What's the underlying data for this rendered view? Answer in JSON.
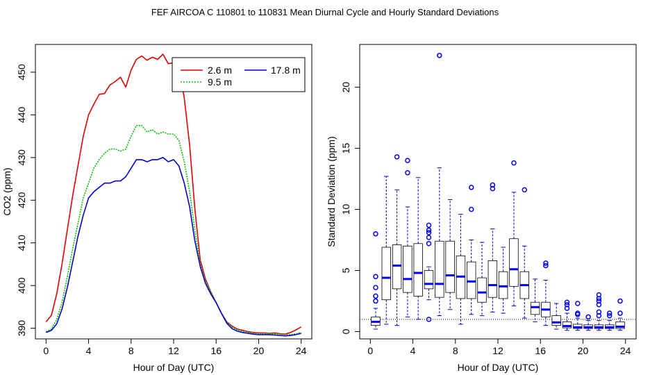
{
  "figure": {
    "title": "FEF   AIRCOA C   110801 to 110831   Mean Diurnal Cycle and Hourly Standard Deviations"
  },
  "colors": {
    "series_2_6": "#e00000",
    "series_9_5": "#00c000",
    "series_17_8": "#0000cc",
    "box_median": "#0000ff",
    "box_whisker": "#0000cc",
    "box_outlier": "#0000ff",
    "box_frame": "#000000"
  },
  "chart_data": [
    {
      "type": "line",
      "title": "",
      "xlabel": "Hour of Day (UTC)",
      "ylabel": "CO2 (ppm)",
      "xlim": [
        -1,
        25
      ],
      "ylim": [
        387.5,
        456.5
      ],
      "xticks": [
        0,
        4,
        8,
        12,
        16,
        20,
        24
      ],
      "yticks": [
        390,
        400,
        410,
        420,
        430,
        440,
        450
      ],
      "legend": {
        "position": "top-right",
        "entries": [
          "2.6 m",
          "9.5 m",
          "17.8 m"
        ]
      },
      "x": [
        0,
        0.5,
        1,
        1.5,
        2,
        2.5,
        3,
        3.5,
        4,
        4.5,
        5,
        5.5,
        6,
        6.5,
        7,
        7.5,
        8,
        8.5,
        9,
        9.5,
        10,
        10.5,
        11,
        11.5,
        12,
        12.5,
        13,
        13.5,
        14,
        14.5,
        15,
        15.5,
        16,
        16.5,
        17,
        17.5,
        18,
        18.5,
        19,
        19.5,
        20,
        20.5,
        21,
        21.5,
        22,
        22.5,
        23,
        23.5,
        24
      ],
      "series": [
        {
          "name": "2.6 m",
          "color_key": "series_2_6",
          "values": [
            391.5,
            393.0,
            398.0,
            405.0,
            413.0,
            421.0,
            428.0,
            435.0,
            440.0,
            442.5,
            444.8,
            445.0,
            447.0,
            447.8,
            448.8,
            446.5,
            450.5,
            453.0,
            453.8,
            452.8,
            453.5,
            453.0,
            454.2,
            452.0,
            452.2,
            451.0,
            444.0,
            433.0,
            418.0,
            406.0,
            401.5,
            398.5,
            396.0,
            393.5,
            391.5,
            390.5,
            389.8,
            389.5,
            389.2,
            389.0,
            388.9,
            388.9,
            388.8,
            388.9,
            388.7,
            388.6,
            389.0,
            389.6,
            390.3
          ]
        },
        {
          "name": "9.5 m",
          "color_key": "series_9_5",
          "values": [
            389.2,
            389.8,
            392.0,
            396.0,
            402.0,
            408.5,
            414.5,
            420.5,
            424.0,
            427.5,
            429.5,
            431.0,
            432.0,
            432.0,
            431.5,
            432.0,
            435.0,
            437.5,
            437.5,
            436.0,
            436.5,
            435.5,
            436.0,
            435.5,
            435.5,
            434.0,
            429.0,
            422.0,
            413.0,
            405.0,
            401.0,
            398.5,
            396.0,
            393.5,
            391.5,
            390.2,
            389.6,
            389.3,
            389.0,
            388.8,
            388.7,
            388.7,
            388.7,
            388.6,
            388.6,
            388.5,
            388.5,
            388.7,
            389.0
          ]
        },
        {
          "name": "17.8 m",
          "color_key": "series_17_8",
          "values": [
            389.0,
            389.5,
            391.0,
            394.5,
            399.5,
            405.5,
            411.5,
            416.5,
            420.5,
            422.0,
            423.0,
            424.0,
            424.0,
            424.5,
            424.5,
            425.5,
            427.5,
            429.5,
            429.5,
            429.0,
            429.5,
            429.5,
            430.0,
            429.0,
            429.5,
            428.0,
            424.0,
            418.5,
            410.5,
            404.5,
            400.5,
            398.0,
            396.0,
            393.5,
            391.2,
            389.9,
            389.3,
            389.0,
            388.8,
            388.6,
            388.5,
            388.5,
            388.5,
            388.4,
            388.3,
            388.2,
            388.3,
            388.5,
            388.8
          ]
        }
      ]
    },
    {
      "type": "box",
      "title": "",
      "xlabel": "Hour of Day (UTC)",
      "ylabel": "Standard Deviation (ppm)",
      "xlim": [
        -1,
        25
      ],
      "ylim": [
        -0.6,
        23.5
      ],
      "xticks": [
        0,
        4,
        8,
        12,
        16,
        20,
        24
      ],
      "yticks": [
        0,
        5,
        10,
        15,
        20
      ],
      "reference_line": 1.0,
      "boxes": [
        {
          "x": 0.5,
          "q1": 0.5,
          "median": 0.8,
          "q3": 1.2,
          "wlo": 0.2,
          "whi": 1.9,
          "outliers": [
            2.5,
            2.9,
            3.6,
            4.5,
            8.0
          ]
        },
        {
          "x": 1.5,
          "q1": 2.6,
          "median": 4.4,
          "q3": 6.9,
          "wlo": 0.6,
          "whi": 12.7,
          "outliers": []
        },
        {
          "x": 2.5,
          "q1": 3.5,
          "median": 5.4,
          "q3": 7.1,
          "wlo": 0.5,
          "whi": 11.6,
          "outliers": [
            14.3
          ]
        },
        {
          "x": 3.5,
          "q1": 3.2,
          "median": 4.3,
          "q3": 7.0,
          "wlo": 1.2,
          "whi": 10.2,
          "outliers": [
            13.0,
            14.0
          ]
        },
        {
          "x": 4.5,
          "q1": 2.9,
          "median": 4.8,
          "q3": 7.2,
          "wlo": 1.0,
          "whi": 12.6,
          "outliers": []
        },
        {
          "x": 5.5,
          "q1": 3.5,
          "median": 3.9,
          "q3": 5.0,
          "wlo": 2.6,
          "whi": 5.3,
          "outliers": [
            1.0,
            7.2,
            7.7,
            8.1,
            8.3,
            8.7
          ]
        },
        {
          "x": 6.5,
          "q1": 2.8,
          "median": 3.9,
          "q3": 7.4,
          "wlo": 1.3,
          "whi": 13.4,
          "outliers": [
            22.6
          ]
        },
        {
          "x": 7.5,
          "q1": 3.2,
          "median": 4.6,
          "q3": 7.4,
          "wlo": 1.8,
          "whi": 10.8,
          "outliers": []
        },
        {
          "x": 8.5,
          "q1": 2.7,
          "median": 4.5,
          "q3": 6.2,
          "wlo": 0.6,
          "whi": 9.6,
          "outliers": []
        },
        {
          "x": 9.5,
          "q1": 2.7,
          "median": 4.1,
          "q3": 5.7,
          "wlo": 1.4,
          "whi": 7.5,
          "outliers": [
            10.0,
            11.8
          ]
        },
        {
          "x": 10.5,
          "q1": 2.4,
          "median": 3.2,
          "q3": 4.4,
          "wlo": 1.3,
          "whi": 7.3,
          "outliers": []
        },
        {
          "x": 11.5,
          "q1": 2.8,
          "median": 3.8,
          "q3": 5.8,
          "wlo": 1.6,
          "whi": 8.4,
          "outliers": [
            11.7,
            12.0
          ]
        },
        {
          "x": 12.5,
          "q1": 2.7,
          "median": 3.7,
          "q3": 4.9,
          "wlo": 1.5,
          "whi": 6.9,
          "outliers": []
        },
        {
          "x": 13.5,
          "q1": 3.7,
          "median": 5.1,
          "q3": 7.6,
          "wlo": 2.1,
          "whi": 11.4,
          "outliers": [
            13.8
          ]
        },
        {
          "x": 14.5,
          "q1": 2.7,
          "median": 3.8,
          "q3": 4.9,
          "wlo": 1.1,
          "whi": 7.0,
          "outliers": [
            11.6
          ]
        },
        {
          "x": 15.5,
          "q1": 1.4,
          "median": 2.0,
          "q3": 2.4,
          "wlo": 0.8,
          "whi": 4.3,
          "outliers": []
        },
        {
          "x": 16.5,
          "q1": 1.2,
          "median": 1.8,
          "q3": 2.4,
          "wlo": 0.5,
          "whi": 4.2,
          "outliers": [
            5.4,
            5.6
          ]
        },
        {
          "x": 17.5,
          "q1": 0.5,
          "median": 0.75,
          "q3": 1.3,
          "wlo": 0.2,
          "whi": 2.3,
          "outliers": []
        },
        {
          "x": 18.5,
          "q1": 0.3,
          "median": 0.45,
          "q3": 0.8,
          "wlo": 0.1,
          "whi": 1.5,
          "outliers": [
            1.9,
            2.2,
            2.4
          ]
        },
        {
          "x": 19.5,
          "q1": 0.25,
          "median": 0.35,
          "q3": 0.6,
          "wlo": 0.1,
          "whi": 1.1,
          "outliers": [
            1.4,
            1.5,
            2.3
          ]
        },
        {
          "x": 20.5,
          "q1": 0.25,
          "median": 0.35,
          "q3": 0.55,
          "wlo": 0.1,
          "whi": 0.9,
          "outliers": [
            1.2
          ]
        },
        {
          "x": 21.5,
          "q1": 0.25,
          "median": 0.35,
          "q3": 0.55,
          "wlo": 0.1,
          "whi": 0.9,
          "outliers": [
            1.3,
            1.6,
            2.2,
            2.5,
            2.7,
            3.0
          ]
        },
        {
          "x": 22.5,
          "q1": 0.25,
          "median": 0.35,
          "q3": 0.55,
          "wlo": 0.1,
          "whi": 0.9,
          "outliers": [
            1.3,
            1.5
          ]
        },
        {
          "x": 23.5,
          "q1": 0.25,
          "median": 0.4,
          "q3": 0.8,
          "wlo": 0.1,
          "whi": 1.1,
          "outliers": [
            1.5,
            2.5
          ]
        }
      ]
    }
  ]
}
